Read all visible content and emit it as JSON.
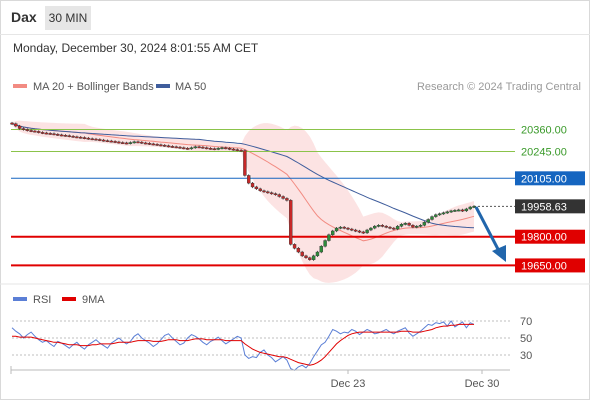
{
  "header": {
    "symbol": "Dax",
    "timeframe": "30 MIN"
  },
  "datetime": "Monday, December 30, 2024 8:01:55 AM CET",
  "legend": {
    "ma20": "MA 20 + Bollinger Bands",
    "ma50": "MA 50",
    "credit": "Research © 2024 Trading Central"
  },
  "colors": {
    "ma20": "#f28b82",
    "ma50": "#3f5d9c",
    "up": "#2e8b3a",
    "down": "#c62828",
    "resistance": "#8bc34a",
    "pivot": "#1565c0",
    "support": "#e00000",
    "arrow": "#2166ac",
    "rsi": "#5b7fd6",
    "rsi_ma": "#e00000"
  },
  "chart_data": [
    {
      "type": "candlestick",
      "ylim": [
        19500,
        20500
      ],
      "levels": [
        {
          "value": "20360.00",
          "kind": "resistance"
        },
        {
          "value": "20245.00",
          "kind": "resistance"
        },
        {
          "value": "20105.00",
          "kind": "pivot"
        },
        {
          "value": "19958.63",
          "kind": "last"
        },
        {
          "value": "19800.00",
          "kind": "support"
        },
        {
          "value": "19650.00",
          "kind": "support"
        }
      ],
      "closes": [
        20390,
        20378,
        20365,
        20360,
        20355,
        20352,
        20350,
        20345,
        20342,
        20340,
        20338,
        20335,
        20332,
        20330,
        20328,
        20325,
        20322,
        20320,
        20318,
        20315,
        20312,
        20310,
        20308,
        20305,
        20302,
        20300,
        20298,
        20295,
        20292,
        20290,
        20288,
        20292,
        20296,
        20294,
        20290,
        20288,
        20285,
        20283,
        20280,
        20278,
        20275,
        20272,
        20270,
        20268,
        20265,
        20262,
        20260,
        20265,
        20270,
        20268,
        20265,
        20262,
        20260,
        20258,
        20262,
        20265,
        20262,
        20258,
        20255,
        20252,
        20250,
        20120,
        20080,
        20060,
        20050,
        20040,
        20035,
        20030,
        20025,
        20020,
        20010,
        20000,
        19990,
        19760,
        19740,
        19720,
        19700,
        19690,
        19680,
        19700,
        19720,
        19750,
        19780,
        19810,
        19830,
        19845,
        19850,
        19845,
        19840,
        19835,
        19830,
        19825,
        19820,
        19835,
        19845,
        19855,
        19860,
        19855,
        19850,
        19845,
        19840,
        19855,
        19865,
        19870,
        19860,
        19850,
        19855,
        19860,
        19875,
        19890,
        19905,
        19915,
        19920,
        19925,
        19930,
        19935,
        19938,
        19940,
        19935,
        19945,
        19955,
        19958.63
      ],
      "ma20_legend": "MA 20 + Bollinger Bands",
      "ma50_legend": "MA 50"
    },
    {
      "type": "line",
      "series": [
        {
          "name": "RSI"
        },
        {
          "name": "9MA"
        }
      ],
      "ylim": [
        0,
        100
      ],
      "yticks": [
        "70",
        "50",
        "30"
      ],
      "xticks": [
        "Dec 23",
        "Dec 30"
      ],
      "rsi": [
        62,
        58,
        55,
        50,
        54,
        57,
        52,
        48,
        45,
        47,
        43,
        40,
        46,
        44,
        41,
        38,
        42,
        45,
        40,
        37,
        42,
        45,
        48,
        44,
        41,
        38,
        44,
        47,
        50,
        46,
        43,
        46,
        52,
        55,
        50,
        47,
        44,
        40,
        43,
        48,
        53,
        55,
        50,
        46,
        42,
        44,
        50,
        54,
        52,
        49,
        45,
        42,
        46,
        48,
        51,
        47,
        43,
        46,
        49,
        52,
        50,
        30,
        26,
        28,
        27,
        33,
        36,
        30,
        27,
        22,
        25,
        28,
        24,
        14,
        12,
        16,
        18,
        15,
        20,
        28,
        35,
        42,
        45,
        52,
        60,
        58,
        55,
        57,
        56,
        60,
        58,
        54,
        57,
        60,
        58,
        55,
        56,
        58,
        60,
        57,
        55,
        58,
        60,
        62,
        56,
        52,
        55,
        58,
        62,
        66,
        65,
        68,
        67,
        69,
        64,
        70,
        63,
        66,
        69,
        62,
        68,
        66
      ],
      "rsi_ma": [
        52,
        52,
        51,
        51,
        51,
        51,
        50,
        49,
        48,
        47,
        46,
        45,
        45,
        44,
        43,
        42,
        42,
        42,
        41,
        41,
        41,
        42,
        42,
        43,
        43,
        43,
        43,
        44,
        45,
        45,
        45,
        45,
        46,
        47,
        47,
        47,
        47,
        46,
        46,
        46,
        47,
        48,
        48,
        48,
        47,
        47,
        47,
        48,
        49,
        49,
        49,
        48,
        48,
        48,
        48,
        48,
        47,
        47,
        47,
        47,
        47,
        43,
        40,
        37,
        35,
        33,
        32,
        31,
        30,
        29,
        28,
        28,
        27,
        25,
        23,
        21,
        20,
        19,
        18,
        19,
        21,
        24,
        28,
        33,
        38,
        43,
        47,
        50,
        53,
        55,
        56,
        57,
        57,
        57,
        57,
        57,
        57,
        57,
        57,
        57,
        57,
        57,
        58,
        58,
        58,
        57,
        57,
        57,
        58,
        59,
        60,
        62,
        63,
        64,
        64,
        65,
        65,
        66,
        66,
        66,
        66,
        66
      ]
    }
  ]
}
